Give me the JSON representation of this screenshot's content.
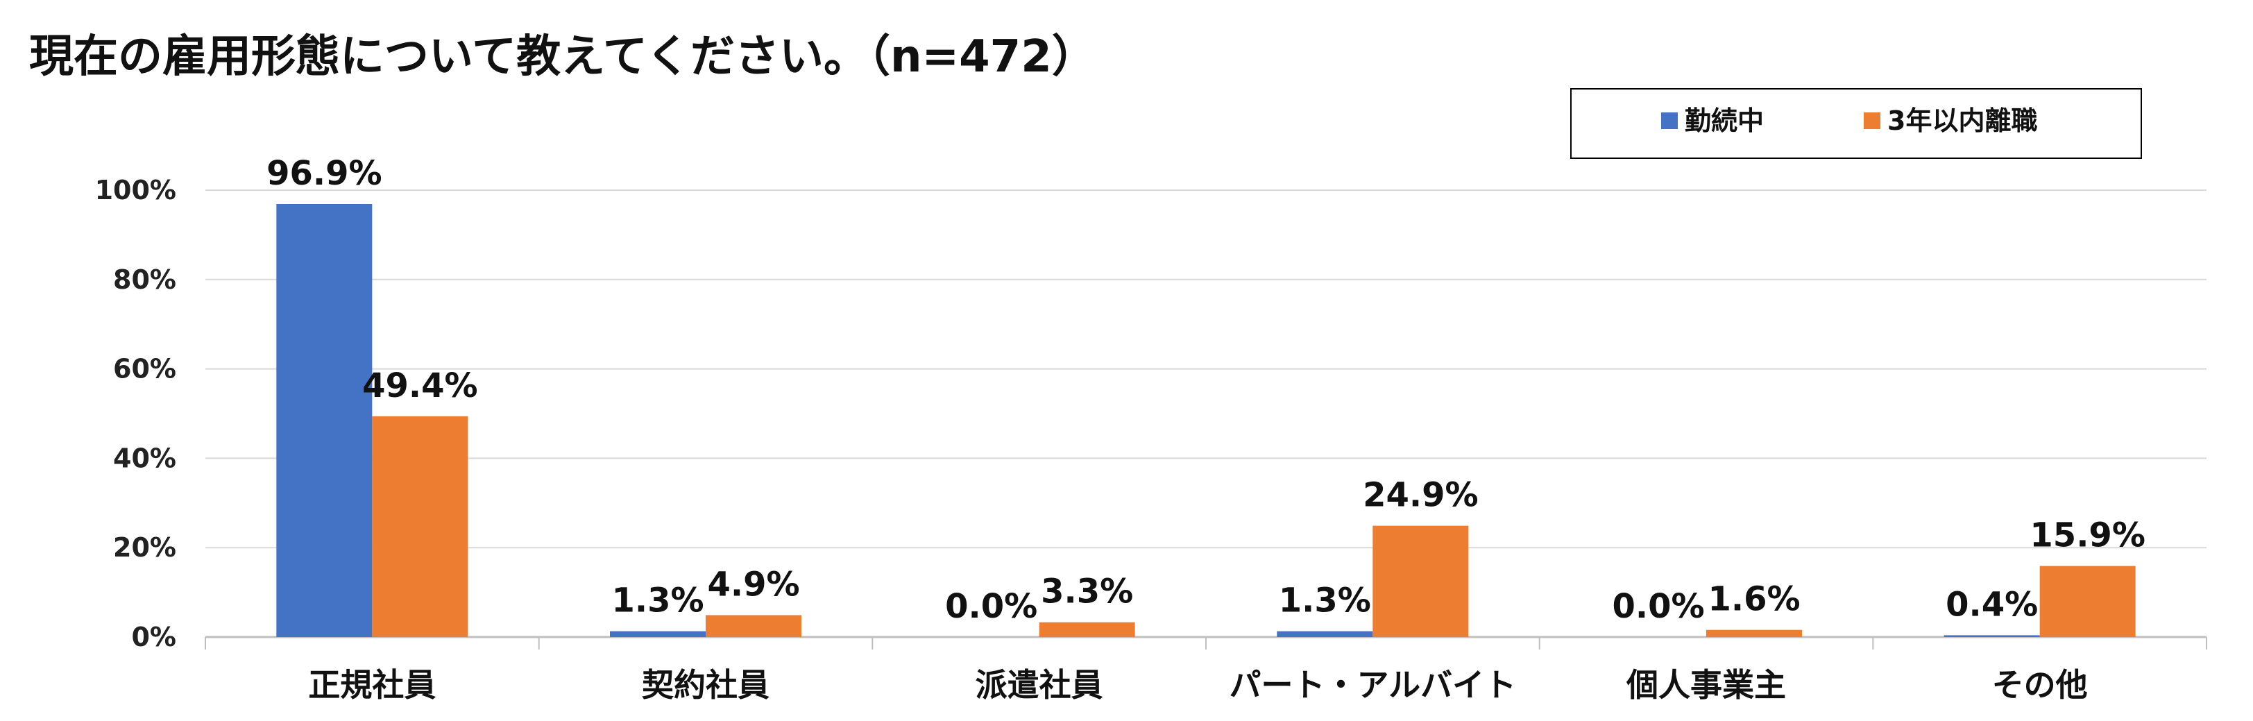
{
  "chart_data": {
    "type": "bar",
    "title": "現在の雇用形態について教えてください。（n=472）",
    "categories": [
      "正規社員",
      "契約社員",
      "派遣社員",
      "パート・アルバイト",
      "個人事業主",
      "その他"
    ],
    "series": [
      {
        "name": "勤続中",
        "color": "#4472C4",
        "values": [
          96.9,
          1.3,
          0.0,
          1.3,
          0.0,
          0.4
        ],
        "labels": [
          "96.9%",
          "1.3%",
          "0.0%",
          "1.3%",
          "0.0%",
          "0.4%"
        ]
      },
      {
        "name": "3年以内離職",
        "color": "#ED7D31",
        "values": [
          49.4,
          4.9,
          3.3,
          24.9,
          1.6,
          15.9
        ],
        "labels": [
          "49.4%",
          "4.9%",
          "3.3%",
          "24.9%",
          "1.6%",
          "15.9%"
        ]
      }
    ],
    "y_ticks": [
      "0%",
      "20%",
      "40%",
      "60%",
      "80%",
      "100%"
    ],
    "ylim": [
      0,
      100
    ],
    "grid": true,
    "legend_position": "top-right"
  }
}
